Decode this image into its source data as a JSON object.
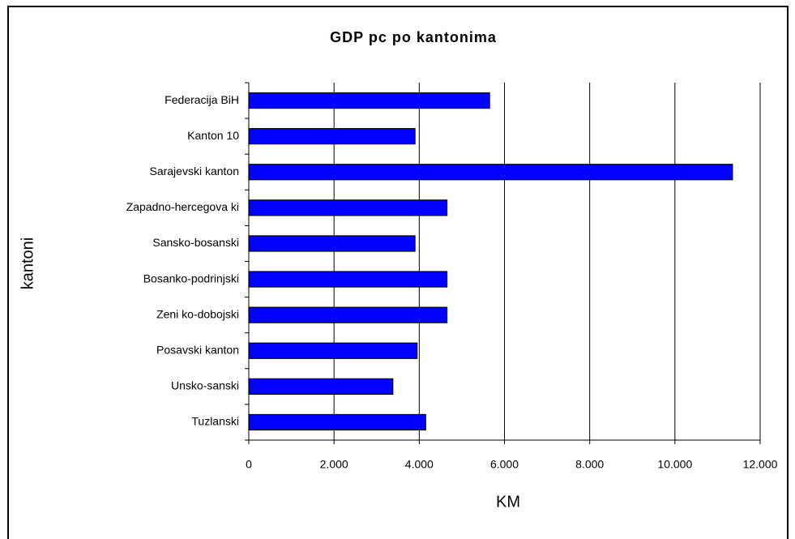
{
  "chart_data": {
    "type": "barh",
    "title": "GDP pc po kantonima",
    "xlabel": "KM",
    "ylabel": "kantoni",
    "categories": [
      "Federacija BiH",
      "Kanton 10",
      "Sarajevski kanton",
      "Zapadno-hercegova ki",
      "Sansko-bosanski",
      "Bosanko-podrinjski",
      "Zeni ko-dobojski",
      "Posavski kanton",
      "Unsko-sanski",
      "Tuzlanski"
    ],
    "values": [
      5650,
      3900,
      11350,
      4650,
      3900,
      4650,
      4650,
      3950,
      3380,
      4150
    ],
    "color": "#0000ff",
    "xlim": [
      0,
      12000
    ],
    "xticks": [
      0,
      {
        "value": 2000,
        "label": "2.000"
      },
      {
        "value": 4000,
        "label": "4.000"
      },
      {
        "value": 6000,
        "label": "6.000"
      },
      {
        "value": 8000,
        "label": "8.000"
      },
      {
        "value": 10000,
        "label": "10.000"
      },
      {
        "value": 12000,
        "label": "12.000"
      }
    ],
    "grid": true
  }
}
